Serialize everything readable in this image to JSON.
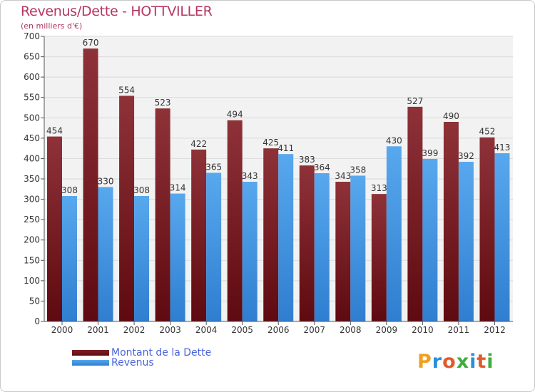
{
  "header": {
    "title": "Revenus/Dette - HOTTVILLER",
    "subtitle": "(en milliers d'€)"
  },
  "legend": [
    {
      "label": "Montant de la Dette",
      "color": "#5e0a10"
    },
    {
      "label": "Revenus",
      "color": "#3e95e0"
    }
  ],
  "logo": {
    "text": "Proxiti"
  },
  "colors": {
    "title": "#b5365f",
    "dette_dark": "#5e0a10",
    "dette_light": "#8e3238",
    "revenus_dark": "#2f7ed0",
    "revenus_light": "#58a8ee",
    "legend_text": "#4a63d8"
  },
  "chart_data": {
    "type": "bar",
    "title": "Revenus/Dette - HOTTVILLER",
    "subtitle": "(en milliers d'€)",
    "categories": [
      "2000",
      "2001",
      "2002",
      "2003",
      "2004",
      "2005",
      "2006",
      "2007",
      "2008",
      "2009",
      "2010",
      "2011",
      "2012"
    ],
    "series": [
      {
        "name": "Montant de la Dette",
        "values": [
          454,
          670,
          554,
          523,
          422,
          494,
          425,
          383,
          343,
          313,
          527,
          490,
          452
        ]
      },
      {
        "name": "Revenus",
        "values": [
          308,
          330,
          308,
          314,
          365,
          343,
          411,
          364,
          358,
          430,
          399,
          392,
          413
        ]
      }
    ],
    "yticks": [
      0,
      50,
      100,
      150,
      200,
      250,
      300,
      350,
      400,
      450,
      500,
      550,
      600,
      650,
      700
    ],
    "ylim": [
      0,
      700
    ],
    "grid": true,
    "legend_position": "bottom-left"
  }
}
